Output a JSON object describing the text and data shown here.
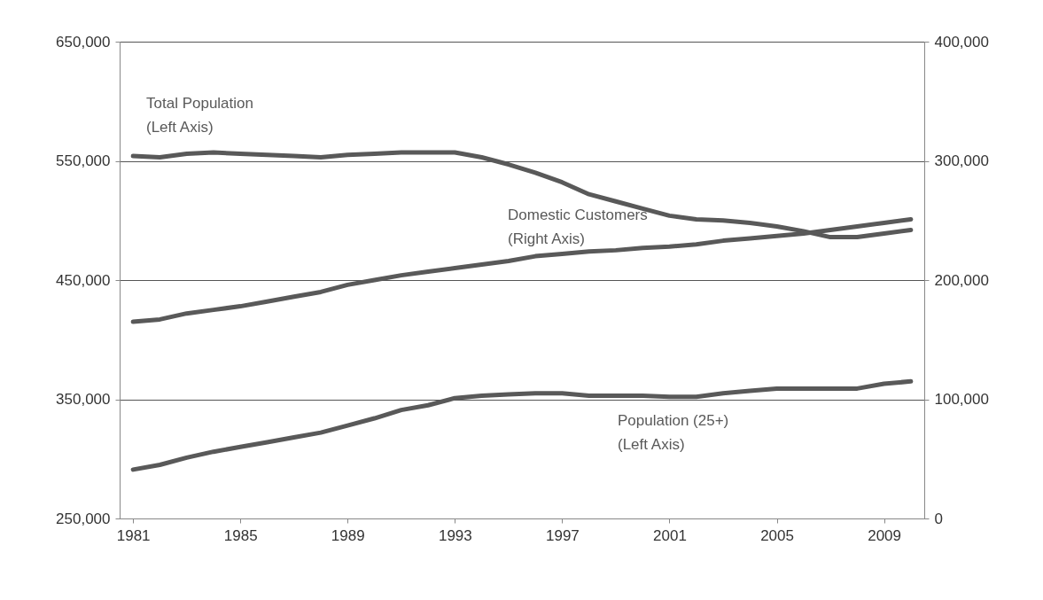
{
  "chart_data": {
    "type": "line",
    "x": [
      1981,
      1982,
      1983,
      1984,
      1985,
      1986,
      1987,
      1988,
      1989,
      1990,
      1991,
      1992,
      1993,
      1994,
      1995,
      1996,
      1997,
      1998,
      1999,
      2000,
      2001,
      2002,
      2003,
      2004,
      2005,
      2006,
      2007,
      2008,
      2009,
      2010
    ],
    "series": [
      {
        "name": "Total Population (Left Axis)",
        "color": "#595959",
        "values": [
          554000,
          553000,
          556000,
          557000,
          556000,
          555000,
          554000,
          553000,
          555000,
          556000,
          557000,
          557000,
          557000,
          553000,
          547000,
          540000,
          532000,
          522000,
          516000,
          510000,
          504000,
          501000,
          500000,
          498000,
          495000,
          491000,
          486000,
          486000,
          489000,
          492000
        ]
      },
      {
        "name": "Domestic Customers (Right Axis)",
        "color": "#595959",
        "axis": "y2",
        "values": [
          165000,
          167000,
          172000,
          175000,
          178000,
          182000,
          186000,
          190000,
          196000,
          200000,
          204000,
          207000,
          210000,
          213000,
          216000,
          220000,
          222000,
          224000,
          225000,
          227000,
          228000,
          230000,
          233000,
          235000,
          237000,
          239000,
          242000,
          245000,
          248000,
          251000
        ]
      },
      {
        "name": "Population (25+) (Left Axis)",
        "color": "#595959",
        "values": [
          291000,
          295000,
          301000,
          306000,
          310000,
          314000,
          318000,
          322000,
          328000,
          334000,
          341000,
          345000,
          351000,
          353000,
          354000,
          355000,
          355000,
          353000,
          353000,
          353000,
          352000,
          352000,
          355000,
          357000,
          359000,
          359000,
          359000,
          359000,
          363000,
          365000
        ]
      }
    ],
    "xlim": [
      1980.5,
      2010.5
    ],
    "xticks": [
      1981,
      1985,
      1989,
      1993,
      1997,
      2001,
      2005,
      2009
    ],
    "ylim": [
      250000,
      650000
    ],
    "yticks": [
      {
        "value": 250000,
        "label": "250,000"
      },
      {
        "value": 350000,
        "label": "350,000"
      },
      {
        "value": 450000,
        "label": "450,000"
      },
      {
        "value": 550000,
        "label": "550,000"
      },
      {
        "value": 650000,
        "label": "650,000"
      }
    ],
    "y2lim": [
      0,
      400000
    ],
    "y2ticks": [
      0,
      {
        "value": 100000,
        "label": "100,000"
      },
      {
        "value": 200000,
        "label": "200,000"
      },
      {
        "value": 300000,
        "label": "300,000"
      },
      {
        "value": 400000,
        "label": "400,000"
      }
    ],
    "grid": "y",
    "line_style": "solid"
  }
}
